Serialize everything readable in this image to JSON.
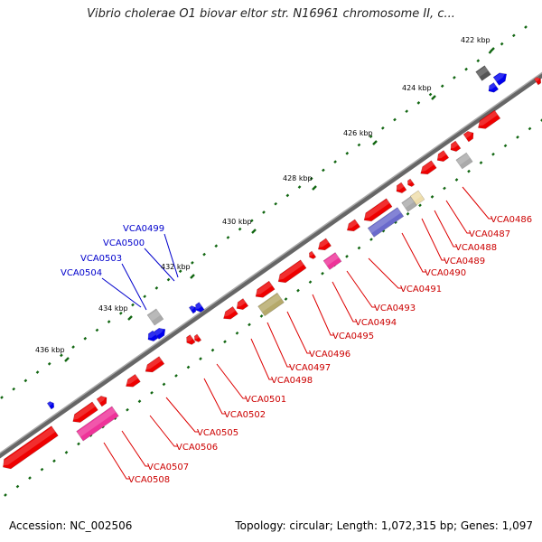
{
  "title": "Vibrio cholerae O1 biovar eltor str. N16961 chromosome II, c...",
  "footer": {
    "accession": "Accession: NC_002506",
    "summary": "Topology: circular; Length: 1,072,315 bp; Genes: 1,097"
  },
  "ticks": [
    {
      "label": "422 kbp"
    },
    {
      "label": "424 kbp"
    },
    {
      "label": "426 kbp"
    },
    {
      "label": "428 kbp"
    },
    {
      "label": "430 kbp"
    },
    {
      "label": "432 kbp"
    },
    {
      "label": "434 kbp"
    },
    {
      "label": "436 kbp"
    }
  ],
  "genes_below": [
    {
      "label": "VCA0486"
    },
    {
      "label": "VCA0487"
    },
    {
      "label": "VCA0488"
    },
    {
      "label": "VCA0489"
    },
    {
      "label": "VCA0490"
    },
    {
      "label": "VCA0491"
    },
    {
      "label": "VCA0493"
    },
    {
      "label": "VCA0494"
    },
    {
      "label": "VCA0495"
    },
    {
      "label": "VCA0496"
    },
    {
      "label": "VCA0497"
    },
    {
      "label": "VCA0498"
    },
    {
      "label": "VCA0501"
    },
    {
      "label": "VCA0502"
    },
    {
      "label": "VCA0505"
    },
    {
      "label": "VCA0506"
    },
    {
      "label": "VCA0507"
    },
    {
      "label": "VCA0508"
    }
  ],
  "genes_above": [
    {
      "label": "VCA0499"
    },
    {
      "label": "VCA0500"
    },
    {
      "label": "VCA0503"
    },
    {
      "label": "VCA0504"
    }
  ],
  "colors": {
    "backbone": "#888888",
    "cds": "#ee0000",
    "rna": "#0000ee",
    "pink": "#ee3399",
    "olive": "#b5a96a",
    "purple": "#6a6acc",
    "gray": "#aaaaaa",
    "dark_gray": "#555555",
    "yellow": "#eeddaa",
    "label_red": "#cc0000",
    "label_blue": "#0000cc",
    "tick_green": "#116611"
  }
}
